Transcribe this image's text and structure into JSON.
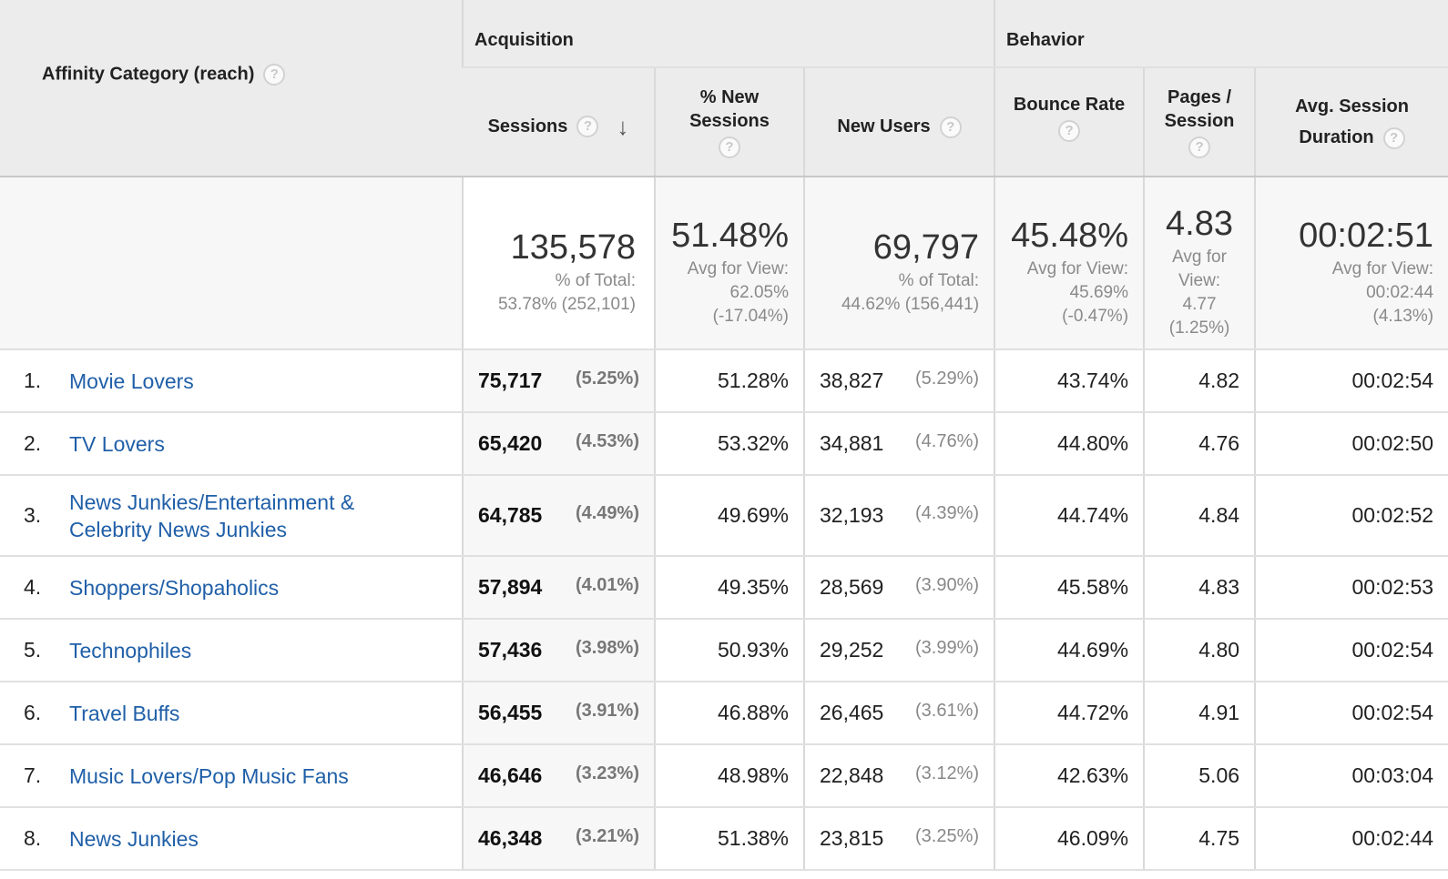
{
  "header": {
    "dimension_label": "Affinity Category (reach)",
    "groups": {
      "acquisition": "Acquisition",
      "behavior": "Behavior"
    },
    "columns": {
      "sessions": "Sessions",
      "new_sessions_line1": "% New",
      "new_sessions_line2": "Sessions",
      "new_users": "New Users",
      "bounce_rate": "Bounce Rate",
      "pages_line1": "Pages /",
      "pages_line2": "Session",
      "avg_line1": "Avg. Session",
      "avg_line2": "Duration"
    },
    "help_glyph": "?",
    "sort_glyph": "↓"
  },
  "summary": {
    "sessions": {
      "value": "135,578",
      "sub1": "% of Total:",
      "sub2": "53.78% (252,101)"
    },
    "new_sessions": {
      "value": "51.48%",
      "sub1": "Avg for View:",
      "sub2": "62.05%",
      "sub3": "(-17.04%)"
    },
    "new_users": {
      "value": "69,797",
      "sub1": "% of Total:",
      "sub2": "44.62% (156,441)"
    },
    "bounce_rate": {
      "value": "45.48%",
      "sub1": "Avg for View:",
      "sub2": "45.69%",
      "sub3": "(-0.47%)"
    },
    "pages": {
      "value": "4.83",
      "sub1": "Avg for",
      "sub2": "View:",
      "sub3": "4.77",
      "sub4": "(1.25%)"
    },
    "avg_duration": {
      "value": "00:02:51",
      "sub1": "Avg for View:",
      "sub2": "00:02:44",
      "sub3": "(4.13%)"
    }
  },
  "rows": [
    {
      "index": "1.",
      "category": "Movie Lovers",
      "sessions": "75,717",
      "sessions_pct": "(5.25%)",
      "new_sessions": "51.28%",
      "new_users": "38,827",
      "new_users_pct": "(5.29%)",
      "bounce_rate": "43.74%",
      "pages": "4.82",
      "avg_duration": "00:02:54"
    },
    {
      "index": "2.",
      "category": "TV Lovers",
      "sessions": "65,420",
      "sessions_pct": "(4.53%)",
      "new_sessions": "53.32%",
      "new_users": "34,881",
      "new_users_pct": "(4.76%)",
      "bounce_rate": "44.80%",
      "pages": "4.76",
      "avg_duration": "00:02:50"
    },
    {
      "index": "3.",
      "category_line1": "News Junkies/Entertainment &",
      "category_line2": "Celebrity News Junkies",
      "sessions": "64,785",
      "sessions_pct": "(4.49%)",
      "new_sessions": "49.69%",
      "new_users": "32,193",
      "new_users_pct": "(4.39%)",
      "bounce_rate": "44.74%",
      "pages": "4.84",
      "avg_duration": "00:02:52"
    },
    {
      "index": "4.",
      "category": "Shoppers/Shopaholics",
      "sessions": "57,894",
      "sessions_pct": "(4.01%)",
      "new_sessions": "49.35%",
      "new_users": "28,569",
      "new_users_pct": "(3.90%)",
      "bounce_rate": "45.58%",
      "pages": "4.83",
      "avg_duration": "00:02:53"
    },
    {
      "index": "5.",
      "category": "Technophiles",
      "sessions": "57,436",
      "sessions_pct": "(3.98%)",
      "new_sessions": "50.93%",
      "new_users": "29,252",
      "new_users_pct": "(3.99%)",
      "bounce_rate": "44.69%",
      "pages": "4.80",
      "avg_duration": "00:02:54"
    },
    {
      "index": "6.",
      "category": "Travel Buffs",
      "sessions": "56,455",
      "sessions_pct": "(3.91%)",
      "new_sessions": "46.88%",
      "new_users": "26,465",
      "new_users_pct": "(3.61%)",
      "bounce_rate": "44.72%",
      "pages": "4.91",
      "avg_duration": "00:02:54"
    },
    {
      "index": "7.",
      "category": "Music Lovers/Pop Music Fans",
      "sessions": "46,646",
      "sessions_pct": "(3.23%)",
      "new_sessions": "48.98%",
      "new_users": "22,848",
      "new_users_pct": "(3.12%)",
      "bounce_rate": "42.63%",
      "pages": "5.06",
      "avg_duration": "00:03:04"
    },
    {
      "index": "8.",
      "category": "News Junkies",
      "sessions": "46,348",
      "sessions_pct": "(3.21%)",
      "new_sessions": "51.38%",
      "new_users": "23,815",
      "new_users_pct": "(3.25%)",
      "bounce_rate": "46.09%",
      "pages": "4.75",
      "avg_duration": "00:02:44"
    }
  ],
  "colors": {
    "link": "#1f5fa8",
    "header_bg": "#ececec",
    "summary_bg": "#f7f7f7"
  }
}
